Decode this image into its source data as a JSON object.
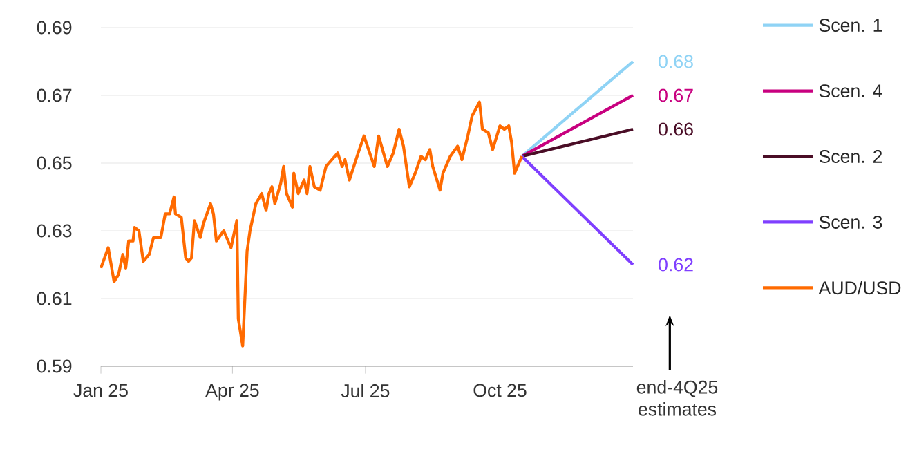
{
  "chart_data": {
    "type": "line",
    "xlim": [
      "2025-01-01",
      "2025-12-31"
    ],
    "xticks": [
      {
        "value": "2025-01-01",
        "label": "Jan 25"
      },
      {
        "value": "2025-04-01",
        "label": "Apr 25"
      },
      {
        "value": "2025-07-01",
        "label": "Jul 25"
      },
      {
        "value": "2025-10-01",
        "label": "Oct 25"
      }
    ],
    "ylim": [
      0.59,
      0.69
    ],
    "yticks": [
      0.59,
      0.61,
      0.63,
      0.65,
      0.67,
      0.69
    ],
    "grid": "y",
    "legend": "right",
    "marker": "none",
    "line_style": "solid",
    "annotations": [
      "end-4Q25 estimates"
    ],
    "series": [
      {
        "name": "Scen. 1",
        "color": "#8fd3f5",
        "x": [
          "2025-10-16",
          "2025-12-31"
        ],
        "values": [
          0.652,
          0.68
        ],
        "value_labels": [
          null,
          "0.68"
        ]
      },
      {
        "name": "Scen. 4",
        "color": "#c8007f",
        "x": [
          "2025-10-16",
          "2025-12-31"
        ],
        "values": [
          0.652,
          0.67
        ],
        "value_labels": [
          null,
          "0.67"
        ]
      },
      {
        "name": "Scen. 2",
        "color": "#4a0d26",
        "x": [
          "2025-10-16",
          "2025-12-31"
        ],
        "values": [
          0.652,
          0.66
        ],
        "value_labels": [
          null,
          "0.66"
        ]
      },
      {
        "name": "Scen. 3",
        "color": "#7f3fff",
        "x": [
          "2025-10-16",
          "2025-12-31"
        ],
        "values": [
          0.652,
          0.62
        ],
        "value_labels": [
          null,
          "0.62"
        ]
      },
      {
        "name": "AUD/USD",
        "color": "#ff6a00",
        "x": [
          "2025-01-01",
          "2025-01-06",
          "2025-01-10",
          "2025-01-13",
          "2025-01-16",
          "2025-01-18",
          "2025-01-20",
          "2025-01-23",
          "2025-01-24",
          "2025-01-27",
          "2025-01-30",
          "2025-02-03",
          "2025-02-06",
          "2025-02-11",
          "2025-02-14",
          "2025-02-17",
          "2025-02-20",
          "2025-02-21",
          "2025-02-25",
          "2025-02-28",
          "2025-03-02",
          "2025-03-04",
          "2025-03-06",
          "2025-03-10",
          "2025-03-12",
          "2025-03-17",
          "2025-03-19",
          "2025-03-21",
          "2025-03-26",
          "2025-03-31",
          "2025-04-04",
          "2025-04-05",
          "2025-04-08",
          "2025-04-11",
          "2025-04-13",
          "2025-04-17",
          "2025-04-21",
          "2025-04-24",
          "2025-04-26",
          "2025-04-28",
          "2025-04-30",
          "2025-05-04",
          "2025-05-06",
          "2025-05-08",
          "2025-05-12",
          "2025-05-13",
          "2025-05-16",
          "2025-05-20",
          "2025-05-22",
          "2025-05-24",
          "2025-05-27",
          "2025-05-31",
          "2025-06-04",
          "2025-06-08",
          "2025-06-12",
          "2025-06-15",
          "2025-06-17",
          "2025-06-20",
          "2025-06-26",
          "2025-06-30",
          "2025-07-07",
          "2025-07-10",
          "2025-07-16",
          "2025-07-20",
          "2025-07-24",
          "2025-07-27",
          "2025-07-31",
          "2025-08-04",
          "2025-08-08",
          "2025-08-11",
          "2025-08-14",
          "2025-08-16",
          "2025-08-21",
          "2025-08-23",
          "2025-08-28",
          "2025-09-02",
          "2025-09-05",
          "2025-09-09",
          "2025-09-12",
          "2025-09-17",
          "2025-09-19",
          "2025-09-23",
          "2025-09-26",
          "2025-10-01",
          "2025-10-04",
          "2025-10-07",
          "2025-10-09",
          "2025-10-11",
          "2025-10-13",
          "2025-10-16"
        ],
        "values": [
          0.619,
          0.625,
          0.615,
          0.617,
          0.623,
          0.619,
          0.627,
          0.627,
          0.631,
          0.63,
          0.621,
          0.623,
          0.628,
          0.628,
          0.635,
          0.635,
          0.64,
          0.635,
          0.634,
          0.622,
          0.621,
          0.622,
          0.633,
          0.628,
          0.632,
          0.638,
          0.635,
          0.627,
          0.63,
          0.625,
          0.633,
          0.604,
          0.596,
          0.624,
          0.63,
          0.638,
          0.641,
          0.636,
          0.641,
          0.643,
          0.638,
          0.644,
          0.649,
          0.641,
          0.637,
          0.647,
          0.641,
          0.645,
          0.641,
          0.649,
          0.643,
          0.642,
          0.649,
          0.651,
          0.653,
          0.649,
          0.651,
          0.645,
          0.653,
          0.658,
          0.649,
          0.658,
          0.649,
          0.653,
          0.66,
          0.655,
          0.643,
          0.647,
          0.652,
          0.651,
          0.654,
          0.649,
          0.642,
          0.647,
          0.652,
          0.655,
          0.651,
          0.658,
          0.664,
          0.668,
          0.66,
          0.659,
          0.654,
          0.661,
          0.66,
          0.661,
          0.656,
          0.647,
          0.649,
          0.652
        ]
      }
    ]
  }
}
